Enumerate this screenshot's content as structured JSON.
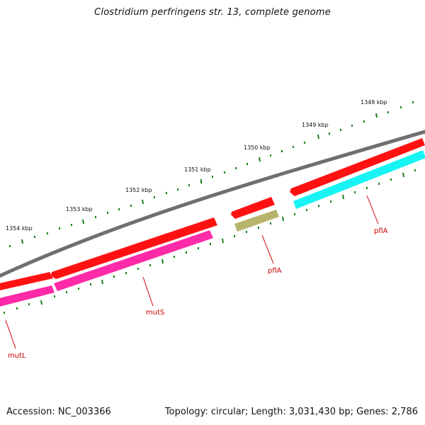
{
  "title": "Clostridium perfringens str. 13, complete genome",
  "footer": {
    "accession": "Accession: NC_003366",
    "summary": "Topology: circular; Length: 3,031,430 bp; Genes: 2,786"
  },
  "ruler": {
    "labels": [
      "1348 kbp",
      "1349 kbp",
      "1350 kbp",
      "1351 kbp",
      "1352 kbp",
      "1353 kbp",
      "1354 kbp"
    ]
  },
  "genes": [
    {
      "name": "mutL",
      "color": "#ff1111",
      "track": "outer-strand"
    },
    {
      "name": "mutS",
      "color": "#ff1111",
      "track": "outer-strand"
    },
    {
      "name": "pflA",
      "color": "#ff1111",
      "track": "outer-strand"
    },
    {
      "name": "pflA",
      "color": "#ff1111",
      "track": "outer-strand"
    }
  ],
  "colors": {
    "backbone": "#7a7a7a",
    "cds": "#ff1111",
    "dna_repair": "#ff1aa3",
    "energy": "#b7b46b",
    "metabolism": "#15f5f5",
    "ticks": "#1a7f1a",
    "gene_label": "#cc0000"
  }
}
